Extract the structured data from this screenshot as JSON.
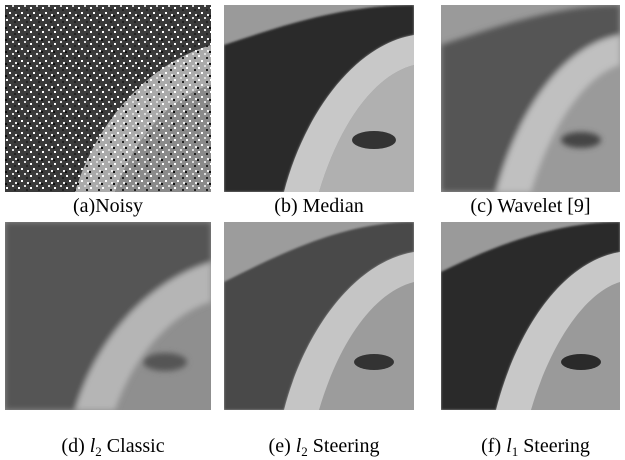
{
  "panels": [
    {
      "caption": "(a)Noisy"
    },
    {
      "caption": "(b) Median"
    },
    {
      "caption": "(c) Wavelet [9]"
    },
    {
      "caption_parts": [
        "(d) ",
        "l",
        "2",
        " Classic"
      ]
    },
    {
      "caption_parts": [
        "(e) ",
        "l",
        "2",
        " Steering"
      ]
    },
    {
      "caption_parts": [
        "(f) ",
        "l",
        "1",
        " Steering"
      ]
    }
  ]
}
